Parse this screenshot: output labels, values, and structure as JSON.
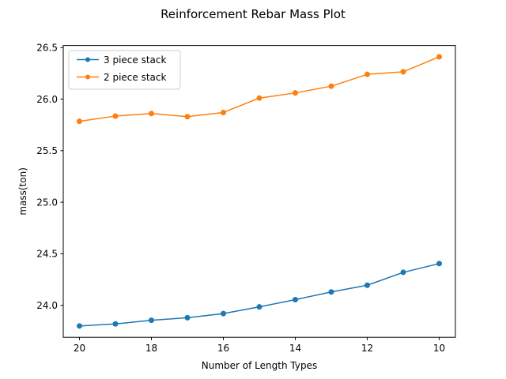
{
  "chart_data": {
    "type": "line",
    "title": "Reinforcement Rebar Mass Plot",
    "xlabel": "Number of Length Types",
    "ylabel": "mass(ton)",
    "x": [
      20,
      19,
      18,
      17,
      16,
      15,
      14,
      13,
      12,
      11,
      10
    ],
    "xlim": [
      20.45,
      9.55
    ],
    "x_inverted": true,
    "ylim": [
      23.69,
      26.52
    ],
    "x_ticks": [
      20,
      18,
      16,
      14,
      12,
      10
    ],
    "y_ticks": [
      24.0,
      24.5,
      25.0,
      25.5,
      26.0,
      26.5
    ],
    "x_tick_labels": [
      "20",
      "18",
      "16",
      "14",
      "12",
      "10"
    ],
    "y_tick_labels": [
      "24.0",
      "24.5",
      "25.0",
      "25.5",
      "26.0",
      "26.5"
    ],
    "grid": false,
    "legend_position": "top-left",
    "series": [
      {
        "name": "3 piece stack",
        "color": "#1f77b4",
        "marker": "circle",
        "values": [
          23.8,
          23.82,
          23.855,
          23.88,
          23.92,
          23.985,
          24.055,
          24.13,
          24.195,
          24.32,
          24.405
        ]
      },
      {
        "name": "2 piece stack",
        "color": "#ff7f0e",
        "marker": "circle",
        "values": [
          25.785,
          25.835,
          25.86,
          25.83,
          25.87,
          26.01,
          26.06,
          26.125,
          26.24,
          26.265,
          26.41
        ]
      }
    ]
  }
}
